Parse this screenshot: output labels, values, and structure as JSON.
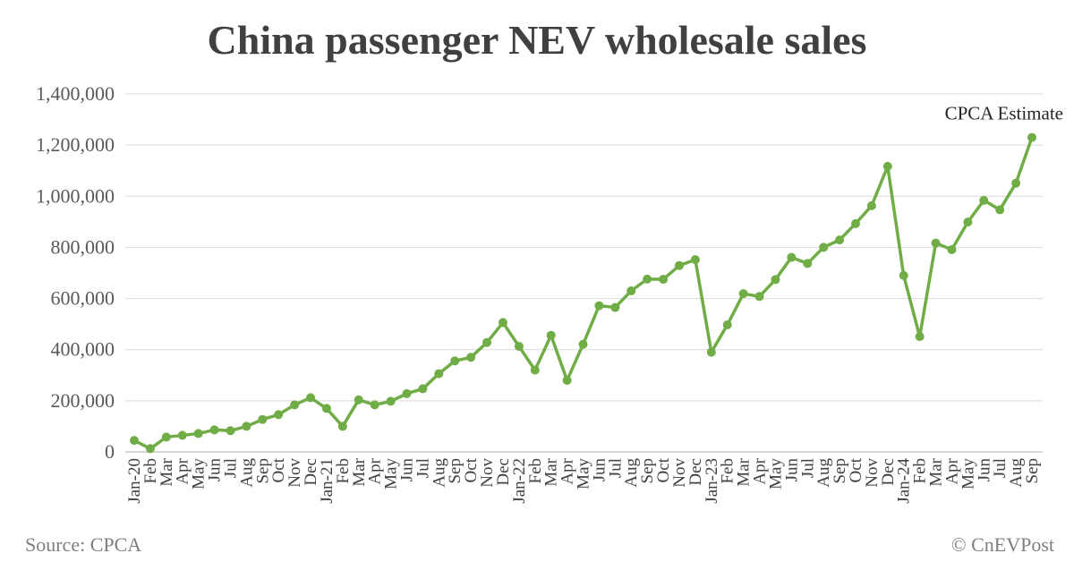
{
  "chart_data": {
    "type": "line",
    "title": "China passenger NEV wholesale sales",
    "xlabel": "",
    "ylabel": "",
    "ylim": [
      0,
      1400000
    ],
    "yticks": [
      0,
      200000,
      400000,
      600000,
      800000,
      1000000,
      1200000,
      1400000
    ],
    "ytick_labels": [
      "0",
      "200,000",
      "400,000",
      "600,000",
      "800,000",
      "1,000,000",
      "1,200,000",
      "1,400,000"
    ],
    "grid": true,
    "color": "#70ad47",
    "categories": [
      "Jan-20",
      "Feb",
      "Mar",
      "Apr",
      "May",
      "Jun",
      "Jul",
      "Aug",
      "Sep",
      "Oct",
      "Nov",
      "Dec",
      "Jan-21",
      "Feb",
      "Mar",
      "Apr",
      "May",
      "Jun",
      "Jul",
      "Aug",
      "Sep",
      "Oct",
      "Nov",
      "Dec",
      "Jan-22",
      "Feb",
      "Mar",
      "Apr",
      "May",
      "Jun",
      "Jul",
      "Aug",
      "Sep",
      "Oct",
      "Nov",
      "Dec",
      "Jan-23",
      "Feb",
      "Mar",
      "Apr",
      "May",
      "Jun",
      "Jul",
      "Aug",
      "Sep",
      "Oct",
      "Nov",
      "Dec",
      "Jan-24",
      "Feb",
      "Mar",
      "Apr",
      "May",
      "Jun",
      "Jul",
      "Aug",
      "Sep"
    ],
    "series": [
      {
        "values": [
          45000,
          13000,
          58000,
          65000,
          72000,
          86000,
          83000,
          100000,
          127000,
          146000,
          184000,
          212000,
          170000,
          100000,
          204000,
          184000,
          198000,
          228000,
          247000,
          306000,
          356000,
          370000,
          428000,
          506000,
          413000,
          320000,
          456000,
          280000,
          421000,
          572000,
          565000,
          630000,
          676000,
          675000,
          729000,
          752000,
          390000,
          497000,
          619000,
          608000,
          674000,
          761000,
          737000,
          800000,
          829000,
          893000,
          963000,
          1117000,
          690000,
          451000,
          817000,
          791000,
          899000,
          984000,
          947000,
          1051000,
          1230000
        ]
      }
    ],
    "annotations": [
      {
        "text": "CPCA Estimate",
        "category": "Sep"
      }
    ]
  },
  "footer": {
    "source": "Source: CPCA",
    "credit": "© CnEVPost"
  }
}
